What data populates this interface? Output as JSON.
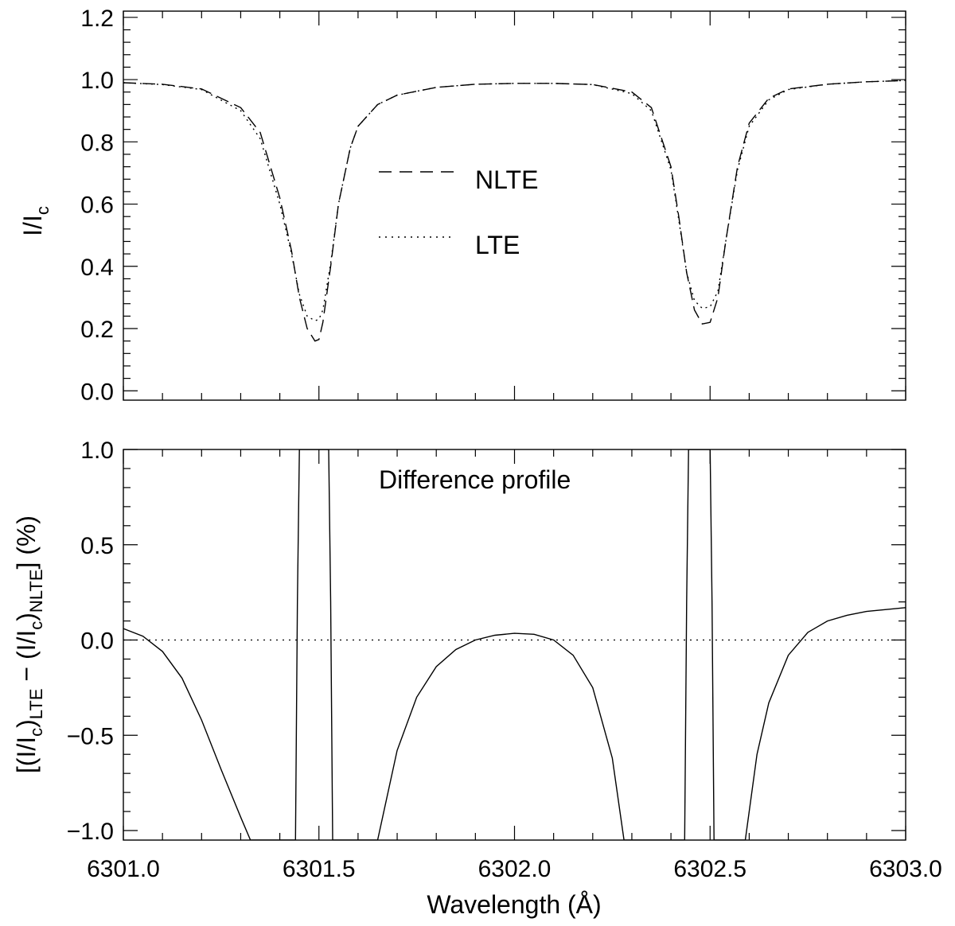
{
  "chart_data": [
    {
      "type": "line",
      "panel": "top",
      "xlabel": "",
      "ylabel": "I/I",
      "ylabel_sub": "c",
      "xlim": [
        6301.0,
        6303.0
      ],
      "ylim": [
        -0.03,
        1.22
      ],
      "yticks": [
        0.0,
        0.2,
        0.4,
        0.6,
        0.8,
        1.0,
        1.2
      ],
      "ytick_labels": [
        "0.0",
        "0.2",
        "0.4",
        "0.6",
        "0.8",
        "1.0",
        "1.2"
      ],
      "legend_position": "center",
      "series": [
        {
          "name": "NLTE",
          "style": "dashed",
          "x": [
            6301.0,
            6301.1,
            6301.2,
            6301.3,
            6301.35,
            6301.4,
            6301.43,
            6301.45,
            6301.47,
            6301.49,
            6301.5,
            6301.51,
            6301.53,
            6301.55,
            6301.58,
            6301.6,
            6301.65,
            6301.7,
            6301.8,
            6301.9,
            6302.0,
            6302.1,
            6302.2,
            6302.3,
            6302.35,
            6302.4,
            6302.42,
            6302.44,
            6302.46,
            6302.48,
            6302.5,
            6302.52,
            6302.54,
            6302.57,
            6302.6,
            6302.65,
            6302.7,
            6302.8,
            6302.9,
            6303.0
          ],
          "y": [
            0.99,
            0.985,
            0.97,
            0.91,
            0.83,
            0.62,
            0.45,
            0.3,
            0.2,
            0.16,
            0.165,
            0.22,
            0.4,
            0.6,
            0.78,
            0.85,
            0.92,
            0.95,
            0.975,
            0.985,
            0.988,
            0.988,
            0.984,
            0.96,
            0.91,
            0.72,
            0.56,
            0.38,
            0.26,
            0.215,
            0.22,
            0.3,
            0.48,
            0.72,
            0.86,
            0.94,
            0.97,
            0.985,
            0.993,
            0.997
          ]
        },
        {
          "name": "LTE",
          "style": "dotted",
          "x": [
            6301.0,
            6301.1,
            6301.2,
            6301.3,
            6301.35,
            6301.4,
            6301.43,
            6301.45,
            6301.47,
            6301.49,
            6301.5,
            6301.51,
            6301.53,
            6301.55,
            6301.58,
            6301.6,
            6301.65,
            6301.7,
            6301.8,
            6301.9,
            6302.0,
            6302.1,
            6302.2,
            6302.3,
            6302.35,
            6302.4,
            6302.42,
            6302.44,
            6302.46,
            6302.48,
            6302.5,
            6302.52,
            6302.54,
            6302.57,
            6302.6,
            6302.65,
            6302.7,
            6302.8,
            6302.9,
            6303.0
          ],
          "y": [
            0.99,
            0.984,
            0.968,
            0.9,
            0.81,
            0.6,
            0.44,
            0.31,
            0.24,
            0.225,
            0.23,
            0.26,
            0.41,
            0.6,
            0.78,
            0.85,
            0.92,
            0.95,
            0.975,
            0.985,
            0.988,
            0.988,
            0.984,
            0.955,
            0.9,
            0.71,
            0.55,
            0.38,
            0.29,
            0.265,
            0.27,
            0.32,
            0.48,
            0.71,
            0.85,
            0.935,
            0.968,
            0.985,
            0.993,
            0.997
          ]
        }
      ]
    },
    {
      "type": "line",
      "panel": "bottom",
      "xlabel": "Wavelength (Å)",
      "ylabel": "[(I/I",
      "ylabel_parts": [
        "[(I/I",
        "c",
        ")",
        "LTE",
        " − (I/I",
        "c",
        ")",
        "NLTE",
        "] (%)"
      ],
      "xlim": [
        6301.0,
        6303.0
      ],
      "ylim": [
        -1.05,
        1.0
      ],
      "xticks": [
        6301.0,
        6301.5,
        6302.0,
        6302.5,
        6303.0
      ],
      "xtick_labels": [
        "6301.0",
        "6301.5",
        "6302.0",
        "6302.5",
        "6303.0"
      ],
      "yticks": [
        -1.0,
        -0.5,
        0.0,
        0.5,
        1.0
      ],
      "ytick_labels": [
        "−1.0",
        "−0.5",
        "0.0",
        "0.5",
        "1.0"
      ],
      "annotations": [
        "Difference profile"
      ],
      "reference_line": {
        "y": 0.0,
        "style": "dotted"
      },
      "series": [
        {
          "name": "Difference",
          "style": "solid",
          "x": [
            6301.0,
            6301.05,
            6301.1,
            6301.15,
            6301.2,
            6301.25,
            6301.3,
            6301.325,
            6301.44,
            6301.445,
            6301.45,
            6301.455,
            6301.52,
            6301.525,
            6301.53,
            6301.535,
            6301.65,
            6301.7,
            6301.75,
            6301.8,
            6301.85,
            6301.9,
            6301.95,
            6302.0,
            6302.05,
            6302.1,
            6302.15,
            6302.2,
            6302.25,
            6302.28,
            6302.435,
            6302.44,
            6302.445,
            6302.45,
            6302.495,
            6302.5,
            6302.505,
            6302.51,
            6302.59,
            6302.62,
            6302.65,
            6302.7,
            6302.75,
            6302.8,
            6302.85,
            6302.9,
            6302.95,
            6303.0
          ],
          "y": [
            0.06,
            0.02,
            -0.06,
            -0.2,
            -0.42,
            -0.68,
            -0.93,
            -1.05,
            -1.05,
            0.2,
            1.0,
            1.0,
            1.0,
            1.0,
            0.2,
            -1.05,
            -1.05,
            -0.58,
            -0.3,
            -0.14,
            -0.05,
            0.0,
            0.025,
            0.035,
            0.03,
            0.0,
            -0.08,
            -0.25,
            -0.62,
            -1.05,
            -1.05,
            0.2,
            1.0,
            1.0,
            1.0,
            1.0,
            0.2,
            -1.05,
            -1.05,
            -0.6,
            -0.33,
            -0.08,
            0.04,
            0.1,
            0.13,
            0.15,
            0.16,
            0.17
          ]
        }
      ]
    }
  ],
  "legend": [
    {
      "label": "NLTE",
      "style": "dashed"
    },
    {
      "label": "LTE",
      "style": "dotted"
    }
  ]
}
